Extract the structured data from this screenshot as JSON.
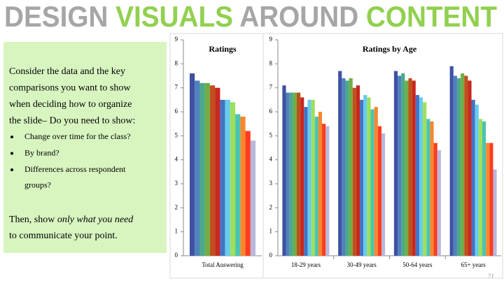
{
  "title": [
    {
      "text": "DESIGN",
      "color": "#a6a6a6"
    },
    {
      "text": "VISUALS",
      "color": "#92d050"
    },
    {
      "text": "AROUND",
      "color": "#a6a6a6"
    },
    {
      "text": "CONTENT",
      "color": "#92d050"
    }
  ],
  "panel": {
    "intro": [
      "Consider the data and the key",
      "comparisons you want to show",
      "when deciding how to organize",
      "the slide– Do you need to show:"
    ],
    "bullets": [
      [
        "Change over time for the class?"
      ],
      [
        "By brand?"
      ],
      [
        "Differences across respondent",
        "groups?"
      ]
    ],
    "closing": {
      "start": "Then, show",
      "emphasis": "only what you need",
      "end": "to communicate your point."
    }
  },
  "page_number": "21",
  "chart_data": [
    {
      "type": "bar",
      "title": "Ratings",
      "categories": [
        "Total Answering"
      ],
      "ylim": [
        0,
        9
      ],
      "yticks": [
        0,
        1,
        2,
        3,
        4,
        5,
        6,
        7,
        8,
        9
      ],
      "series": [
        {
          "color": "#3f51a3",
          "values": [
            7.6
          ]
        },
        {
          "color": "#4f81bd",
          "values": [
            7.3
          ]
        },
        {
          "color": "#4aa98a",
          "values": [
            7.2
          ]
        },
        {
          "color": "#70ad47",
          "values": [
            7.2
          ]
        },
        {
          "color": "#c0501b",
          "values": [
            7.1
          ]
        },
        {
          "color": "#c8281e",
          "values": [
            7.0
          ]
        },
        {
          "color": "#4472c4",
          "values": [
            6.5
          ]
        },
        {
          "color": "#66ccee",
          "values": [
            6.5
          ]
        },
        {
          "color": "#9ee05a",
          "values": [
            6.4
          ]
        },
        {
          "color": "#4cc4b0",
          "values": [
            5.9
          ]
        },
        {
          "color": "#f7872e",
          "values": [
            5.8
          ]
        },
        {
          "color": "#ff3b1f",
          "values": [
            5.2
          ]
        },
        {
          "color": "#b8b8dc",
          "values": [
            4.8
          ]
        }
      ]
    },
    {
      "type": "bar",
      "title": "Ratings by Age",
      "categories": [
        "18-29 years",
        "30-49 years",
        "50-64 years",
        "65+ years"
      ],
      "ylim": [
        0,
        9
      ],
      "yticks": [
        0,
        1,
        2,
        3,
        4,
        5,
        6,
        7,
        8,
        9
      ],
      "series": [
        {
          "color": "#3f51a3",
          "values": [
            7.1,
            7.7,
            7.7,
            7.9
          ]
        },
        {
          "color": "#4f81bd",
          "values": [
            6.8,
            7.4,
            7.5,
            7.5
          ]
        },
        {
          "color": "#4aa98a",
          "values": [
            6.8,
            7.3,
            7.6,
            7.4
          ]
        },
        {
          "color": "#70ad47",
          "values": [
            6.8,
            7.4,
            7.3,
            7.6
          ]
        },
        {
          "color": "#c0501b",
          "values": [
            6.8,
            7.0,
            7.4,
            7.5
          ]
        },
        {
          "color": "#c8281e",
          "values": [
            6.6,
            7.1,
            7.3,
            7.3
          ]
        },
        {
          "color": "#4472c4",
          "values": [
            6.2,
            6.5,
            6.7,
            6.5
          ]
        },
        {
          "color": "#66ccee",
          "values": [
            6.5,
            6.7,
            6.6,
            6.3
          ]
        },
        {
          "color": "#9ee05a",
          "values": [
            6.5,
            6.6,
            6.4,
            5.7
          ]
        },
        {
          "color": "#4cc4b0",
          "values": [
            5.8,
            6.1,
            5.7,
            5.6
          ]
        },
        {
          "color": "#f7872e",
          "values": [
            6.0,
            6.2,
            5.6,
            4.7
          ]
        },
        {
          "color": "#ff3b1f",
          "values": [
            5.5,
            5.4,
            4.7,
            4.7
          ]
        },
        {
          "color": "#b8b8dc",
          "values": [
            5.4,
            5.1,
            4.4,
            3.6
          ]
        }
      ]
    }
  ]
}
